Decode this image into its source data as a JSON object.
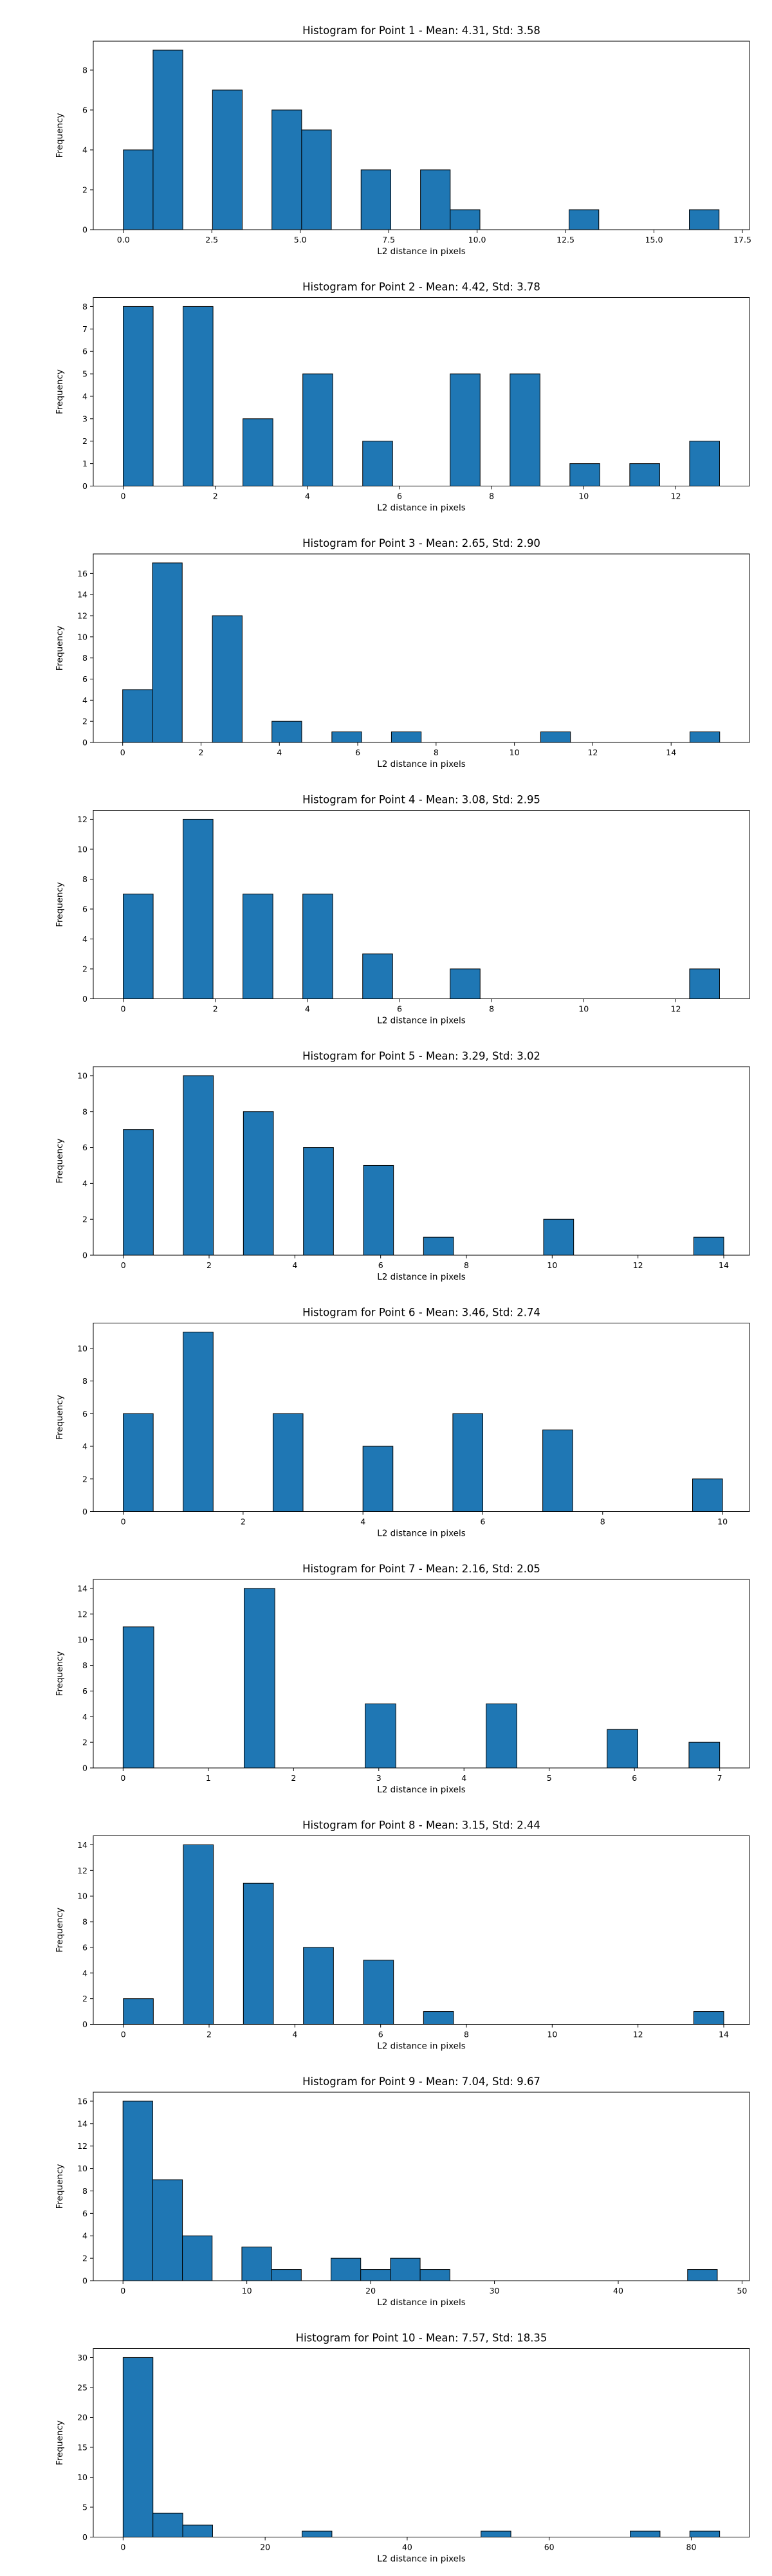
{
  "colors": {
    "bar": "#1f77b4",
    "edge": "#000000"
  },
  "chart_data": [
    {
      "type": "bar",
      "title": "Histogram for Point 1 - Mean: 4.31, Std: 3.58",
      "xlabel": "L2 distance in pixels",
      "ylabel": "Frequency",
      "xlim": [
        -0.85,
        17.7
      ],
      "ylim": [
        0,
        9.45
      ],
      "xticks": [
        0.0,
        2.5,
        5.0,
        7.5,
        10.0,
        12.5,
        15.0,
        17.5
      ],
      "xticklabels": [
        "0.0",
        "2.5",
        "5.0",
        "7.5",
        "10.0",
        "12.5",
        "15.0",
        "17.5"
      ],
      "yticks": [
        0,
        2,
        4,
        6,
        8
      ],
      "yticklabels": [
        "0",
        "2",
        "4",
        "6",
        "8"
      ],
      "bins": [
        {
          "x0": 0.0,
          "x1": 0.84,
          "count": 4
        },
        {
          "x0": 0.84,
          "x1": 1.68,
          "count": 9
        },
        {
          "x0": 2.52,
          "x1": 3.36,
          "count": 7
        },
        {
          "x0": 4.2,
          "x1": 5.04,
          "count": 6
        },
        {
          "x0": 5.04,
          "x1": 5.88,
          "count": 5
        },
        {
          "x0": 6.72,
          "x1": 7.56,
          "count": 3
        },
        {
          "x0": 8.4,
          "x1": 9.24,
          "count": 3
        },
        {
          "x0": 9.24,
          "x1": 10.08,
          "count": 1
        },
        {
          "x0": 12.6,
          "x1": 13.44,
          "count": 1
        },
        {
          "x0": 16.0,
          "x1": 16.84,
          "count": 1
        }
      ]
    },
    {
      "type": "bar",
      "title": "Histogram for Point 2 - Mean: 4.42, Std: 3.78",
      "xlabel": "L2 distance in pixels",
      "ylabel": "Frequency",
      "xlim": [
        -0.65,
        13.6
      ],
      "ylim": [
        0,
        8.4
      ],
      "xticks": [
        0,
        2,
        4,
        6,
        8,
        10,
        12
      ],
      "xticklabels": [
        "0",
        "2",
        "4",
        "6",
        "8",
        "10",
        "12"
      ],
      "yticks": [
        0,
        1,
        2,
        3,
        4,
        5,
        6,
        7,
        8
      ],
      "yticklabels": [
        "0",
        "1",
        "2",
        "3",
        "4",
        "5",
        "6",
        "7",
        "8"
      ],
      "bins": [
        {
          "x0": 0.0,
          "x1": 0.65,
          "count": 8
        },
        {
          "x0": 1.3,
          "x1": 1.95,
          "count": 8
        },
        {
          "x0": 2.6,
          "x1": 3.25,
          "count": 3
        },
        {
          "x0": 3.9,
          "x1": 4.55,
          "count": 5
        },
        {
          "x0": 5.2,
          "x1": 5.85,
          "count": 2
        },
        {
          "x0": 7.1,
          "x1": 7.75,
          "count": 5
        },
        {
          "x0": 8.4,
          "x1": 9.05,
          "count": 5
        },
        {
          "x0": 9.7,
          "x1": 10.35,
          "count": 1
        },
        {
          "x0": 11.0,
          "x1": 11.65,
          "count": 1
        },
        {
          "x0": 12.3,
          "x1": 12.95,
          "count": 2
        }
      ]
    },
    {
      "type": "bar",
      "title": "Histogram for Point 3 - Mean: 2.65, Std: 2.90",
      "xlabel": "L2 distance in pixels",
      "ylabel": "Frequency",
      "xlim": [
        -0.75,
        16.0
      ],
      "ylim": [
        0,
        17.85
      ],
      "xticks": [
        0,
        2,
        4,
        6,
        8,
        10,
        12,
        14
      ],
      "xticklabels": [
        "0",
        "2",
        "4",
        "6",
        "8",
        "10",
        "12",
        "14"
      ],
      "yticks": [
        0,
        2,
        4,
        6,
        8,
        10,
        12,
        14,
        16
      ],
      "yticklabels": [
        "0",
        "2",
        "4",
        "6",
        "8",
        "10",
        "12",
        "14",
        "16"
      ],
      "bins": [
        {
          "x0": 0.0,
          "x1": 0.76,
          "count": 5
        },
        {
          "x0": 0.76,
          "x1": 1.52,
          "count": 17
        },
        {
          "x0": 2.29,
          "x1": 3.05,
          "count": 12
        },
        {
          "x0": 3.81,
          "x1": 4.57,
          "count": 2
        },
        {
          "x0": 5.34,
          "x1": 6.1,
          "count": 1
        },
        {
          "x0": 6.86,
          "x1": 7.62,
          "count": 1
        },
        {
          "x0": 10.67,
          "x1": 11.43,
          "count": 1
        },
        {
          "x0": 14.48,
          "x1": 15.24,
          "count": 1
        }
      ]
    },
    {
      "type": "bar",
      "title": "Histogram for Point 4 - Mean: 3.08, Std: 2.95",
      "xlabel": "L2 distance in pixels",
      "ylabel": "Frequency",
      "xlim": [
        -0.65,
        13.6
      ],
      "ylim": [
        0,
        12.6
      ],
      "xticks": [
        0,
        2,
        4,
        6,
        8,
        10,
        12
      ],
      "xticklabels": [
        "0",
        "2",
        "4",
        "6",
        "8",
        "10",
        "12"
      ],
      "yticks": [
        0,
        2,
        4,
        6,
        8,
        10,
        12
      ],
      "yticklabels": [
        "0",
        "2",
        "4",
        "6",
        "8",
        "10",
        "12"
      ],
      "bins": [
        {
          "x0": 0.0,
          "x1": 0.65,
          "count": 7
        },
        {
          "x0": 1.3,
          "x1": 1.95,
          "count": 12
        },
        {
          "x0": 2.6,
          "x1": 3.25,
          "count": 7
        },
        {
          "x0": 3.9,
          "x1": 4.55,
          "count": 7
        },
        {
          "x0": 5.2,
          "x1": 5.85,
          "count": 3
        },
        {
          "x0": 7.1,
          "x1": 7.75,
          "count": 2
        },
        {
          "x0": 12.3,
          "x1": 12.95,
          "count": 2
        }
      ]
    },
    {
      "type": "bar",
      "title": "Histogram for Point 5 - Mean: 3.29, Std: 3.02",
      "xlabel": "L2 distance in pixels",
      "ylabel": "Frequency",
      "xlim": [
        -0.7,
        14.6
      ],
      "ylim": [
        0,
        10.5
      ],
      "xticks": [
        0,
        2,
        4,
        6,
        8,
        10,
        12,
        14
      ],
      "xticklabels": [
        "0",
        "2",
        "4",
        "6",
        "8",
        "10",
        "12",
        "14"
      ],
      "yticks": [
        0,
        2,
        4,
        6,
        8,
        10
      ],
      "yticklabels": [
        "0",
        "2",
        "4",
        "6",
        "8",
        "10"
      ],
      "bins": [
        {
          "x0": 0.0,
          "x1": 0.7,
          "count": 7
        },
        {
          "x0": 1.4,
          "x1": 2.1,
          "count": 10
        },
        {
          "x0": 2.8,
          "x1": 3.5,
          "count": 8
        },
        {
          "x0": 4.2,
          "x1": 4.9,
          "count": 6
        },
        {
          "x0": 5.6,
          "x1": 6.3,
          "count": 5
        },
        {
          "x0": 7.0,
          "x1": 7.7,
          "count": 1
        },
        {
          "x0": 9.8,
          "x1": 10.5,
          "count": 2
        },
        {
          "x0": 13.3,
          "x1": 14.0,
          "count": 1
        }
      ]
    },
    {
      "type": "bar",
      "title": "Histogram for Point 6 - Mean: 3.46, Std: 2.74",
      "xlabel": "L2 distance in pixels",
      "ylabel": "Frequency",
      "xlim": [
        -0.5,
        10.45
      ],
      "ylim": [
        0,
        11.55
      ],
      "xticks": [
        0,
        2,
        4,
        6,
        8,
        10
      ],
      "xticklabels": [
        "0",
        "2",
        "4",
        "6",
        "8",
        "10"
      ],
      "yticks": [
        0,
        2,
        4,
        6,
        8,
        10
      ],
      "yticklabels": [
        "0",
        "2",
        "4",
        "6",
        "8",
        "10"
      ],
      "bins": [
        {
          "x0": 0.0,
          "x1": 0.5,
          "count": 6
        },
        {
          "x0": 1.0,
          "x1": 1.5,
          "count": 11
        },
        {
          "x0": 2.5,
          "x1": 3.0,
          "count": 6
        },
        {
          "x0": 4.0,
          "x1": 4.5,
          "count": 4
        },
        {
          "x0": 5.5,
          "x1": 6.0,
          "count": 6
        },
        {
          "x0": 7.0,
          "x1": 7.5,
          "count": 5
        },
        {
          "x0": 9.5,
          "x1": 10.0,
          "count": 2
        }
      ]
    },
    {
      "type": "bar",
      "title": "Histogram for Point 7 - Mean: 2.16, Std: 2.05",
      "xlabel": "L2 distance in pixels",
      "ylabel": "Frequency",
      "xlim": [
        -0.35,
        7.35
      ],
      "ylim": [
        0,
        14.7
      ],
      "xticks": [
        0,
        1,
        2,
        3,
        4,
        5,
        6,
        7
      ],
      "xticklabels": [
        "0",
        "1",
        "2",
        "3",
        "4",
        "5",
        "6",
        "7"
      ],
      "yticks": [
        0,
        2,
        4,
        6,
        8,
        10,
        12,
        14
      ],
      "yticklabels": [
        "0",
        "2",
        "4",
        "6",
        "8",
        "10",
        "12",
        "14"
      ],
      "bins": [
        {
          "x0": 0.0,
          "x1": 0.36,
          "count": 11
        },
        {
          "x0": 1.42,
          "x1": 1.78,
          "count": 14
        },
        {
          "x0": 2.84,
          "x1": 3.2,
          "count": 5
        },
        {
          "x0": 4.26,
          "x1": 4.62,
          "count": 5
        },
        {
          "x0": 5.68,
          "x1": 6.04,
          "count": 3
        },
        {
          "x0": 6.64,
          "x1": 7.0,
          "count": 2
        }
      ]
    },
    {
      "type": "bar",
      "title": "Histogram for Point 8 - Mean: 3.15, Std: 2.44",
      "xlabel": "L2 distance in pixels",
      "ylabel": "Frequency",
      "xlim": [
        -0.7,
        14.6
      ],
      "ylim": [
        0,
        14.7
      ],
      "xticks": [
        0,
        2,
        4,
        6,
        8,
        10,
        12,
        14
      ],
      "xticklabels": [
        "0",
        "2",
        "4",
        "6",
        "8",
        "10",
        "12",
        "14"
      ],
      "yticks": [
        0,
        2,
        4,
        6,
        8,
        10,
        12,
        14
      ],
      "yticklabels": [
        "0",
        "2",
        "4",
        "6",
        "8",
        "10",
        "12",
        "14"
      ],
      "bins": [
        {
          "x0": 0.0,
          "x1": 0.7,
          "count": 2
        },
        {
          "x0": 1.4,
          "x1": 2.1,
          "count": 14
        },
        {
          "x0": 2.8,
          "x1": 3.5,
          "count": 11
        },
        {
          "x0": 4.2,
          "x1": 4.9,
          "count": 6
        },
        {
          "x0": 5.6,
          "x1": 6.3,
          "count": 5
        },
        {
          "x0": 7.0,
          "x1": 7.7,
          "count": 1
        },
        {
          "x0": 13.3,
          "x1": 14.0,
          "count": 1
        }
      ]
    },
    {
      "type": "bar",
      "title": "Histogram for Point 9 - Mean: 7.04, Std: 9.67",
      "xlabel": "L2 distance in pixels",
      "ylabel": "Frequency",
      "xlim": [
        -2.4,
        50.6
      ],
      "ylim": [
        0,
        16.8
      ],
      "xticks": [
        0,
        10,
        20,
        30,
        40,
        50
      ],
      "xticklabels": [
        "0",
        "10",
        "20",
        "30",
        "40",
        "50"
      ],
      "yticks": [
        0,
        2,
        4,
        6,
        8,
        10,
        12,
        14,
        16
      ],
      "yticklabels": [
        "0",
        "2",
        "4",
        "6",
        "8",
        "10",
        "12",
        "14",
        "16"
      ],
      "bins": [
        {
          "x0": 0.0,
          "x1": 2.4,
          "count": 16
        },
        {
          "x0": 2.4,
          "x1": 4.8,
          "count": 9
        },
        {
          "x0": 4.8,
          "x1": 7.2,
          "count": 4
        },
        {
          "x0": 9.6,
          "x1": 12.0,
          "count": 3
        },
        {
          "x0": 12.0,
          "x1": 14.4,
          "count": 1
        },
        {
          "x0": 16.8,
          "x1": 19.2,
          "count": 2
        },
        {
          "x0": 19.2,
          "x1": 21.6,
          "count": 1
        },
        {
          "x0": 21.6,
          "x1": 24.0,
          "count": 2
        },
        {
          "x0": 24.0,
          "x1": 26.4,
          "count": 1
        },
        {
          "x0": 45.6,
          "x1": 48.0,
          "count": 1
        }
      ]
    },
    {
      "type": "bar",
      "title": "Histogram for Point 10 - Mean: 7.57, Std: 18.35",
      "xlabel": "L2 distance in pixels",
      "ylabel": "Frequency",
      "xlim": [
        -4.2,
        88.2
      ],
      "ylim": [
        0,
        31.5
      ],
      "xticks": [
        0,
        20,
        40,
        60,
        80
      ],
      "xticklabels": [
        "0",
        "20",
        "40",
        "60",
        "80"
      ],
      "yticks": [
        0,
        5,
        10,
        15,
        20,
        25,
        30
      ],
      "yticklabels": [
        "0",
        "5",
        "10",
        "15",
        "20",
        "25",
        "30"
      ],
      "bins": [
        {
          "x0": 0.0,
          "x1": 4.2,
          "count": 30
        },
        {
          "x0": 4.2,
          "x1": 8.4,
          "count": 4
        },
        {
          "x0": 8.4,
          "x1": 12.6,
          "count": 2
        },
        {
          "x0": 25.2,
          "x1": 29.4,
          "count": 1
        },
        {
          "x0": 50.4,
          "x1": 54.6,
          "count": 1
        },
        {
          "x0": 71.4,
          "x1": 75.6,
          "count": 1
        },
        {
          "x0": 79.8,
          "x1": 84.0,
          "count": 1
        }
      ]
    }
  ]
}
